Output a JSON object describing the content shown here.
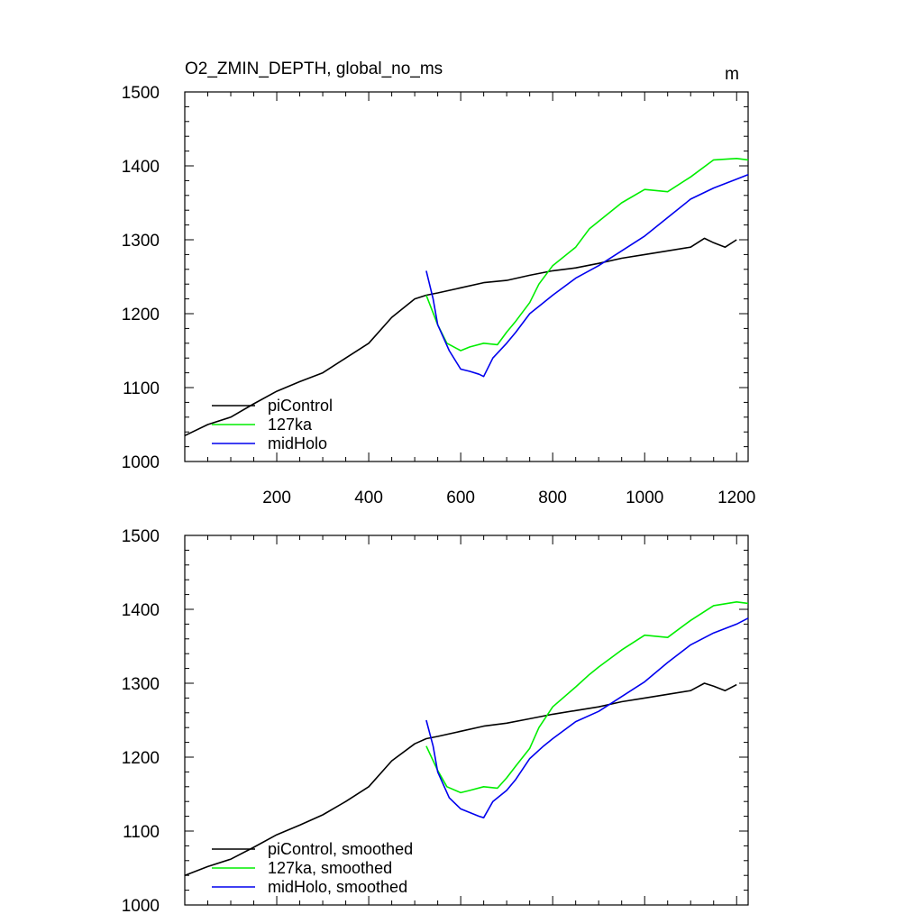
{
  "chart_data": [
    {
      "type": "line",
      "title": "O2_ZMIN_DEPTH, global_no_ms",
      "units": "m",
      "xlabel": "",
      "ylabel": "",
      "xlim": [
        0,
        1225
      ],
      "ylim": [
        1000,
        1500
      ],
      "xticks": [
        "200",
        "400",
        "600",
        "800",
        "1000",
        "1200"
      ],
      "yticks": [
        "1000",
        "1100",
        "1200",
        "1300",
        "1400",
        "1500"
      ],
      "legend_position": "bottom-left",
      "series": [
        {
          "name": "piControl",
          "color": "#000000",
          "x": [
            0,
            50,
            100,
            150,
            200,
            250,
            300,
            350,
            400,
            450,
            500,
            525,
            550,
            600,
            650,
            700,
            750,
            800,
            850,
            900,
            950,
            1000,
            1050,
            1100,
            1130,
            1150,
            1175,
            1200
          ],
          "y": [
            1035,
            1050,
            1060,
            1078,
            1095,
            1108,
            1120,
            1140,
            1160,
            1195,
            1220,
            1225,
            1228,
            1235,
            1242,
            1245,
            1252,
            1258,
            1262,
            1268,
            1275,
            1280,
            1285,
            1290,
            1302,
            1296,
            1290,
            1300
          ]
        },
        {
          "name": "127ka",
          "color": "#00ee00",
          "x": [
            525,
            550,
            570,
            600,
            620,
            650,
            680,
            700,
            720,
            750,
            770,
            800,
            850,
            880,
            900,
            950,
            1000,
            1050,
            1100,
            1150,
            1200,
            1225
          ],
          "y": [
            1225,
            1185,
            1160,
            1150,
            1155,
            1160,
            1158,
            1175,
            1190,
            1215,
            1240,
            1265,
            1290,
            1315,
            1325,
            1350,
            1368,
            1365,
            1385,
            1408,
            1410,
            1408
          ]
        },
        {
          "name": "midHolo",
          "color": "#0000ee",
          "x": [
            525,
            540,
            550,
            575,
            600,
            620,
            640,
            650,
            670,
            700,
            720,
            750,
            780,
            800,
            850,
            900,
            950,
            1000,
            1050,
            1100,
            1150,
            1200,
            1225
          ],
          "y": [
            1258,
            1220,
            1185,
            1150,
            1125,
            1122,
            1118,
            1115,
            1140,
            1160,
            1175,
            1200,
            1215,
            1225,
            1248,
            1265,
            1285,
            1305,
            1330,
            1355,
            1370,
            1382,
            1388
          ]
        }
      ]
    },
    {
      "type": "line",
      "title": "",
      "xlabel": "",
      "ylabel": "",
      "xlim": [
        0,
        1225
      ],
      "ylim": [
        1000,
        1500
      ],
      "yticks": [
        "1000",
        "1100",
        "1200",
        "1300",
        "1400",
        "1500"
      ],
      "legend_position": "bottom-left",
      "series": [
        {
          "name": "piControl, smoothed",
          "color": "#000000",
          "x": [
            0,
            50,
            100,
            150,
            200,
            250,
            300,
            350,
            400,
            450,
            500,
            525,
            550,
            600,
            650,
            700,
            750,
            800,
            850,
            900,
            950,
            1000,
            1050,
            1100,
            1130,
            1150,
            1175,
            1200
          ],
          "y": [
            1040,
            1052,
            1062,
            1078,
            1095,
            1108,
            1122,
            1140,
            1160,
            1195,
            1218,
            1225,
            1228,
            1235,
            1242,
            1246,
            1252,
            1258,
            1263,
            1268,
            1275,
            1280,
            1285,
            1290,
            1300,
            1296,
            1290,
            1298
          ]
        },
        {
          "name": "127ka, smoothed",
          "color": "#00ee00",
          "x": [
            525,
            550,
            570,
            600,
            620,
            650,
            680,
            700,
            720,
            750,
            770,
            800,
            850,
            880,
            900,
            950,
            1000,
            1050,
            1100,
            1150,
            1200,
            1225
          ],
          "y": [
            1215,
            1182,
            1160,
            1152,
            1155,
            1160,
            1158,
            1172,
            1188,
            1212,
            1240,
            1268,
            1295,
            1312,
            1322,
            1345,
            1365,
            1362,
            1385,
            1405,
            1410,
            1408
          ]
        },
        {
          "name": "midHolo, smoothed",
          "color": "#0000ee",
          "x": [
            525,
            540,
            550,
            575,
            600,
            620,
            640,
            650,
            670,
            700,
            720,
            750,
            780,
            800,
            850,
            900,
            950,
            1000,
            1050,
            1100,
            1150,
            1200,
            1225
          ],
          "y": [
            1250,
            1215,
            1180,
            1145,
            1130,
            1125,
            1120,
            1118,
            1140,
            1155,
            1170,
            1198,
            1215,
            1225,
            1248,
            1262,
            1282,
            1302,
            1328,
            1352,
            1368,
            1380,
            1388
          ]
        }
      ]
    }
  ]
}
